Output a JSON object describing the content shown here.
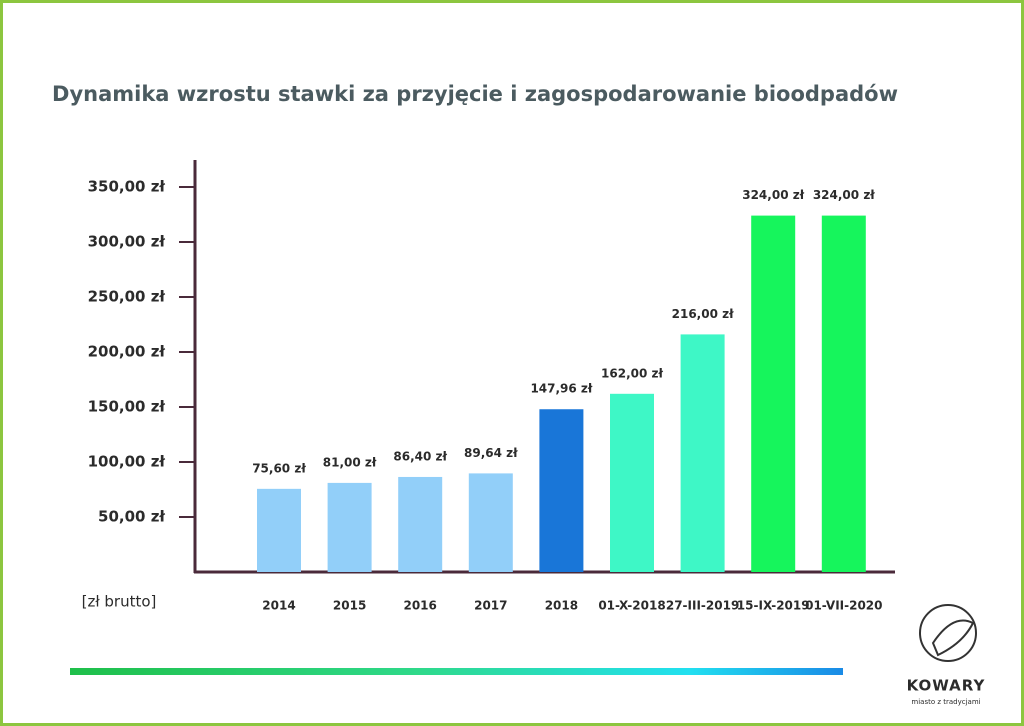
{
  "chart_data": {
    "type": "bar",
    "title": "Dynamika wzrostu stawki za przyjęcie i zagospodarowanie bioodpadów",
    "y_label": "[zł brutto]",
    "categories": [
      "2014",
      "2015",
      "2016",
      "2017",
      "2018",
      "01-X-2018",
      "27-III-2019",
      "15-IX-2019",
      "01-VII-2020"
    ],
    "values": [
      75.6,
      81,
      86.4,
      89.64,
      147.96,
      162,
      216,
      324,
      324
    ],
    "value_labels": [
      "75,60 zł",
      "81,00 zł",
      "86,40 zł",
      "89,64 zł",
      "147,96 zł",
      "162,00 zł",
      "216,00 zł",
      "324,00 zł",
      "324,00 zł"
    ],
    "colors": [
      "#92cff9",
      "#92cff9",
      "#92cff9",
      "#92cff9",
      "#1976d8",
      "#3ef7c6",
      "#3ef7c6",
      "#16f55c",
      "#16f55c"
    ],
    "ylim": [
      0,
      375
    ],
    "yticks": [
      {
        "value": 50,
        "label": "50,00 zł"
      },
      {
        "value": 100,
        "label": "100,00 zł"
      },
      {
        "value": 150,
        "label": "150,00 zł"
      },
      {
        "value": 200,
        "label": "200,00 zł"
      },
      {
        "value": 250,
        "label": "250,00 zł"
      },
      {
        "value": 300,
        "label": "300,00 zł"
      },
      {
        "value": 350,
        "label": "350,00 zł"
      }
    ],
    "grid": false
  },
  "logo": {
    "name": "KOWARY",
    "tagline": "miasto z tradycjami"
  }
}
